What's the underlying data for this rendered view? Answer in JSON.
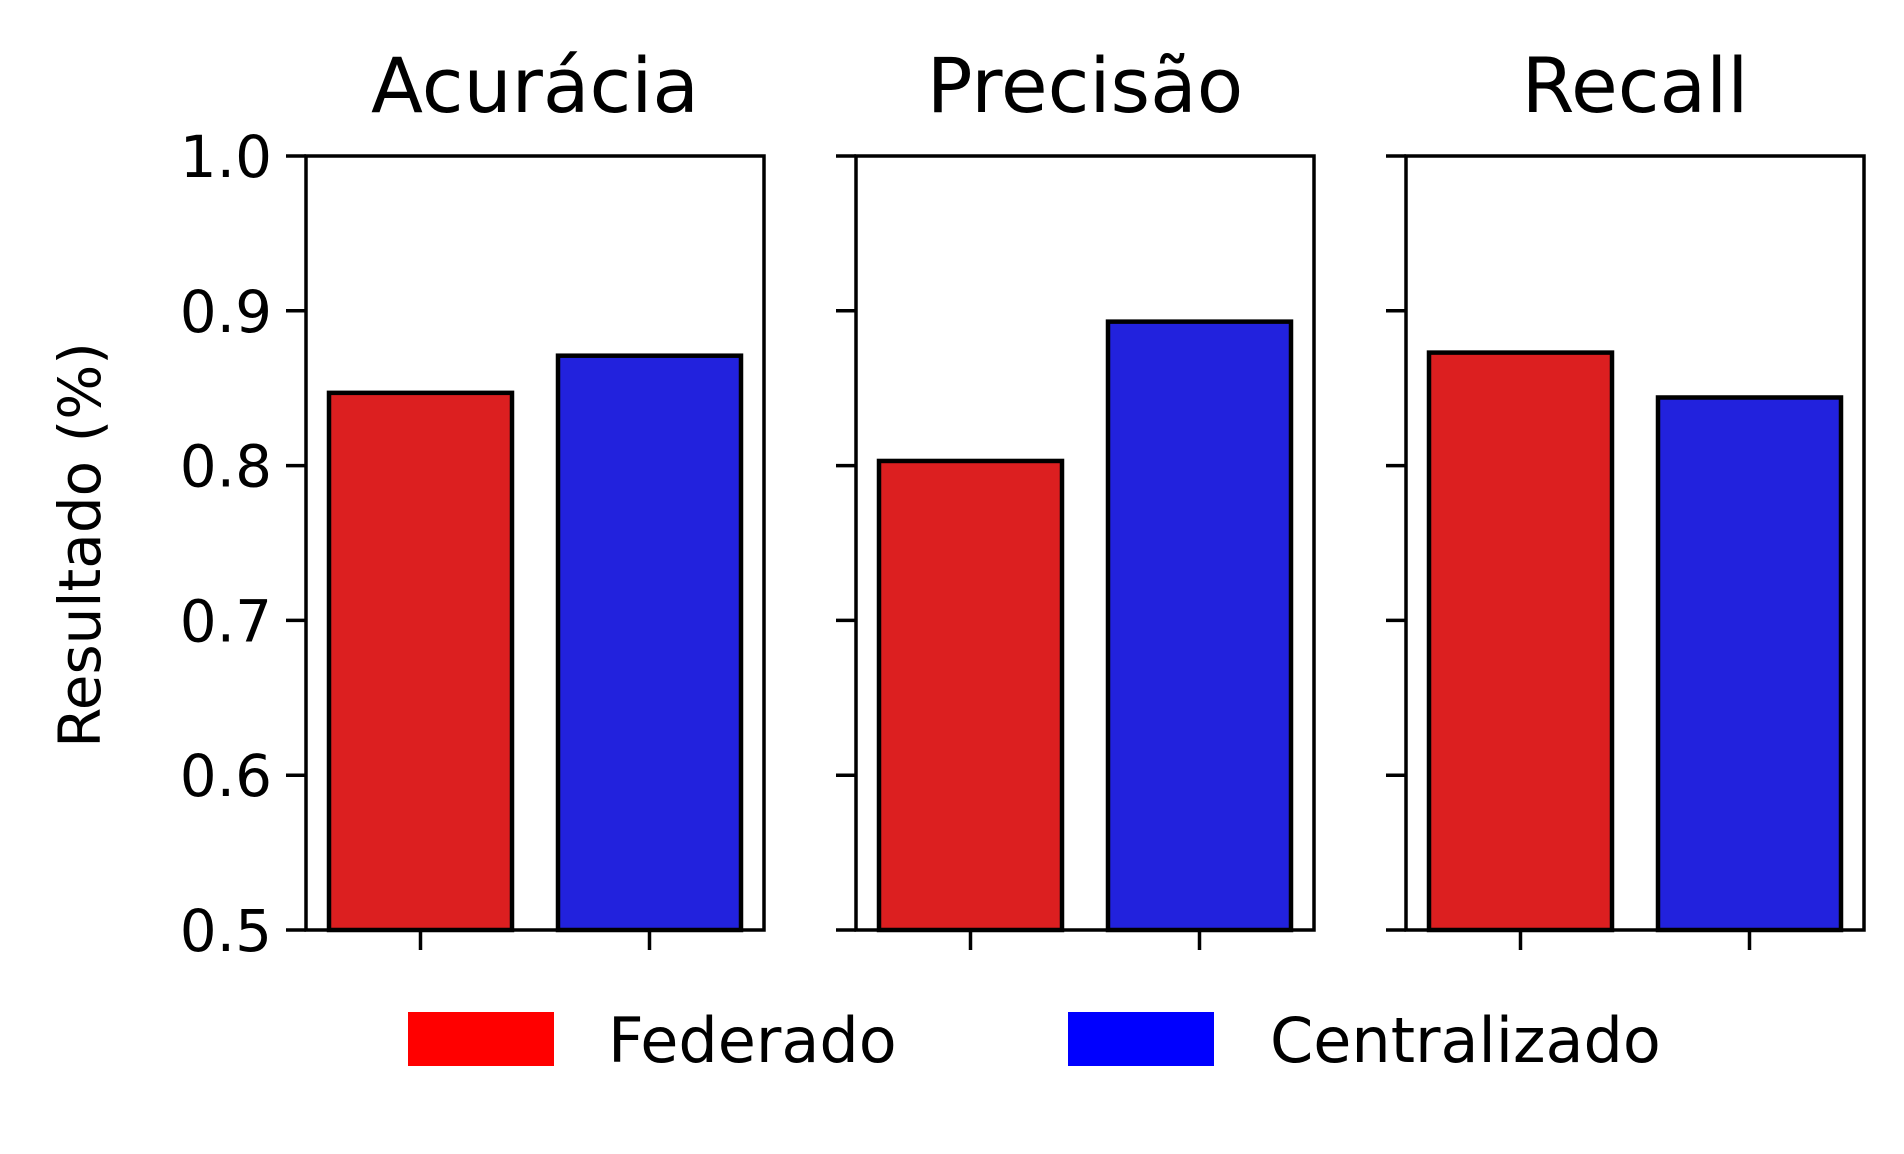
{
  "chart_data": {
    "type": "bar",
    "ylabel": "Resultado (%)",
    "ylim": [
      0.5,
      1.0
    ],
    "yticks": [
      "0.5",
      "0.6",
      "0.7",
      "0.8",
      "0.9",
      "1.0"
    ],
    "grid": false,
    "legend_position": "bottom-center",
    "series": [
      {
        "name": "Federado",
        "color": "#dc1f20",
        "legend_color": "#ff0000"
      },
      {
        "name": "Centralizado",
        "color": "#2222dd",
        "legend_color": "#0000ff"
      }
    ],
    "panels": [
      {
        "title": "Acurácia",
        "values": [
          0.847,
          0.871
        ]
      },
      {
        "title": "Precisão",
        "values": [
          0.803,
          0.893
        ]
      },
      {
        "title": "Recall",
        "values": [
          0.873,
          0.844
        ]
      }
    ]
  }
}
